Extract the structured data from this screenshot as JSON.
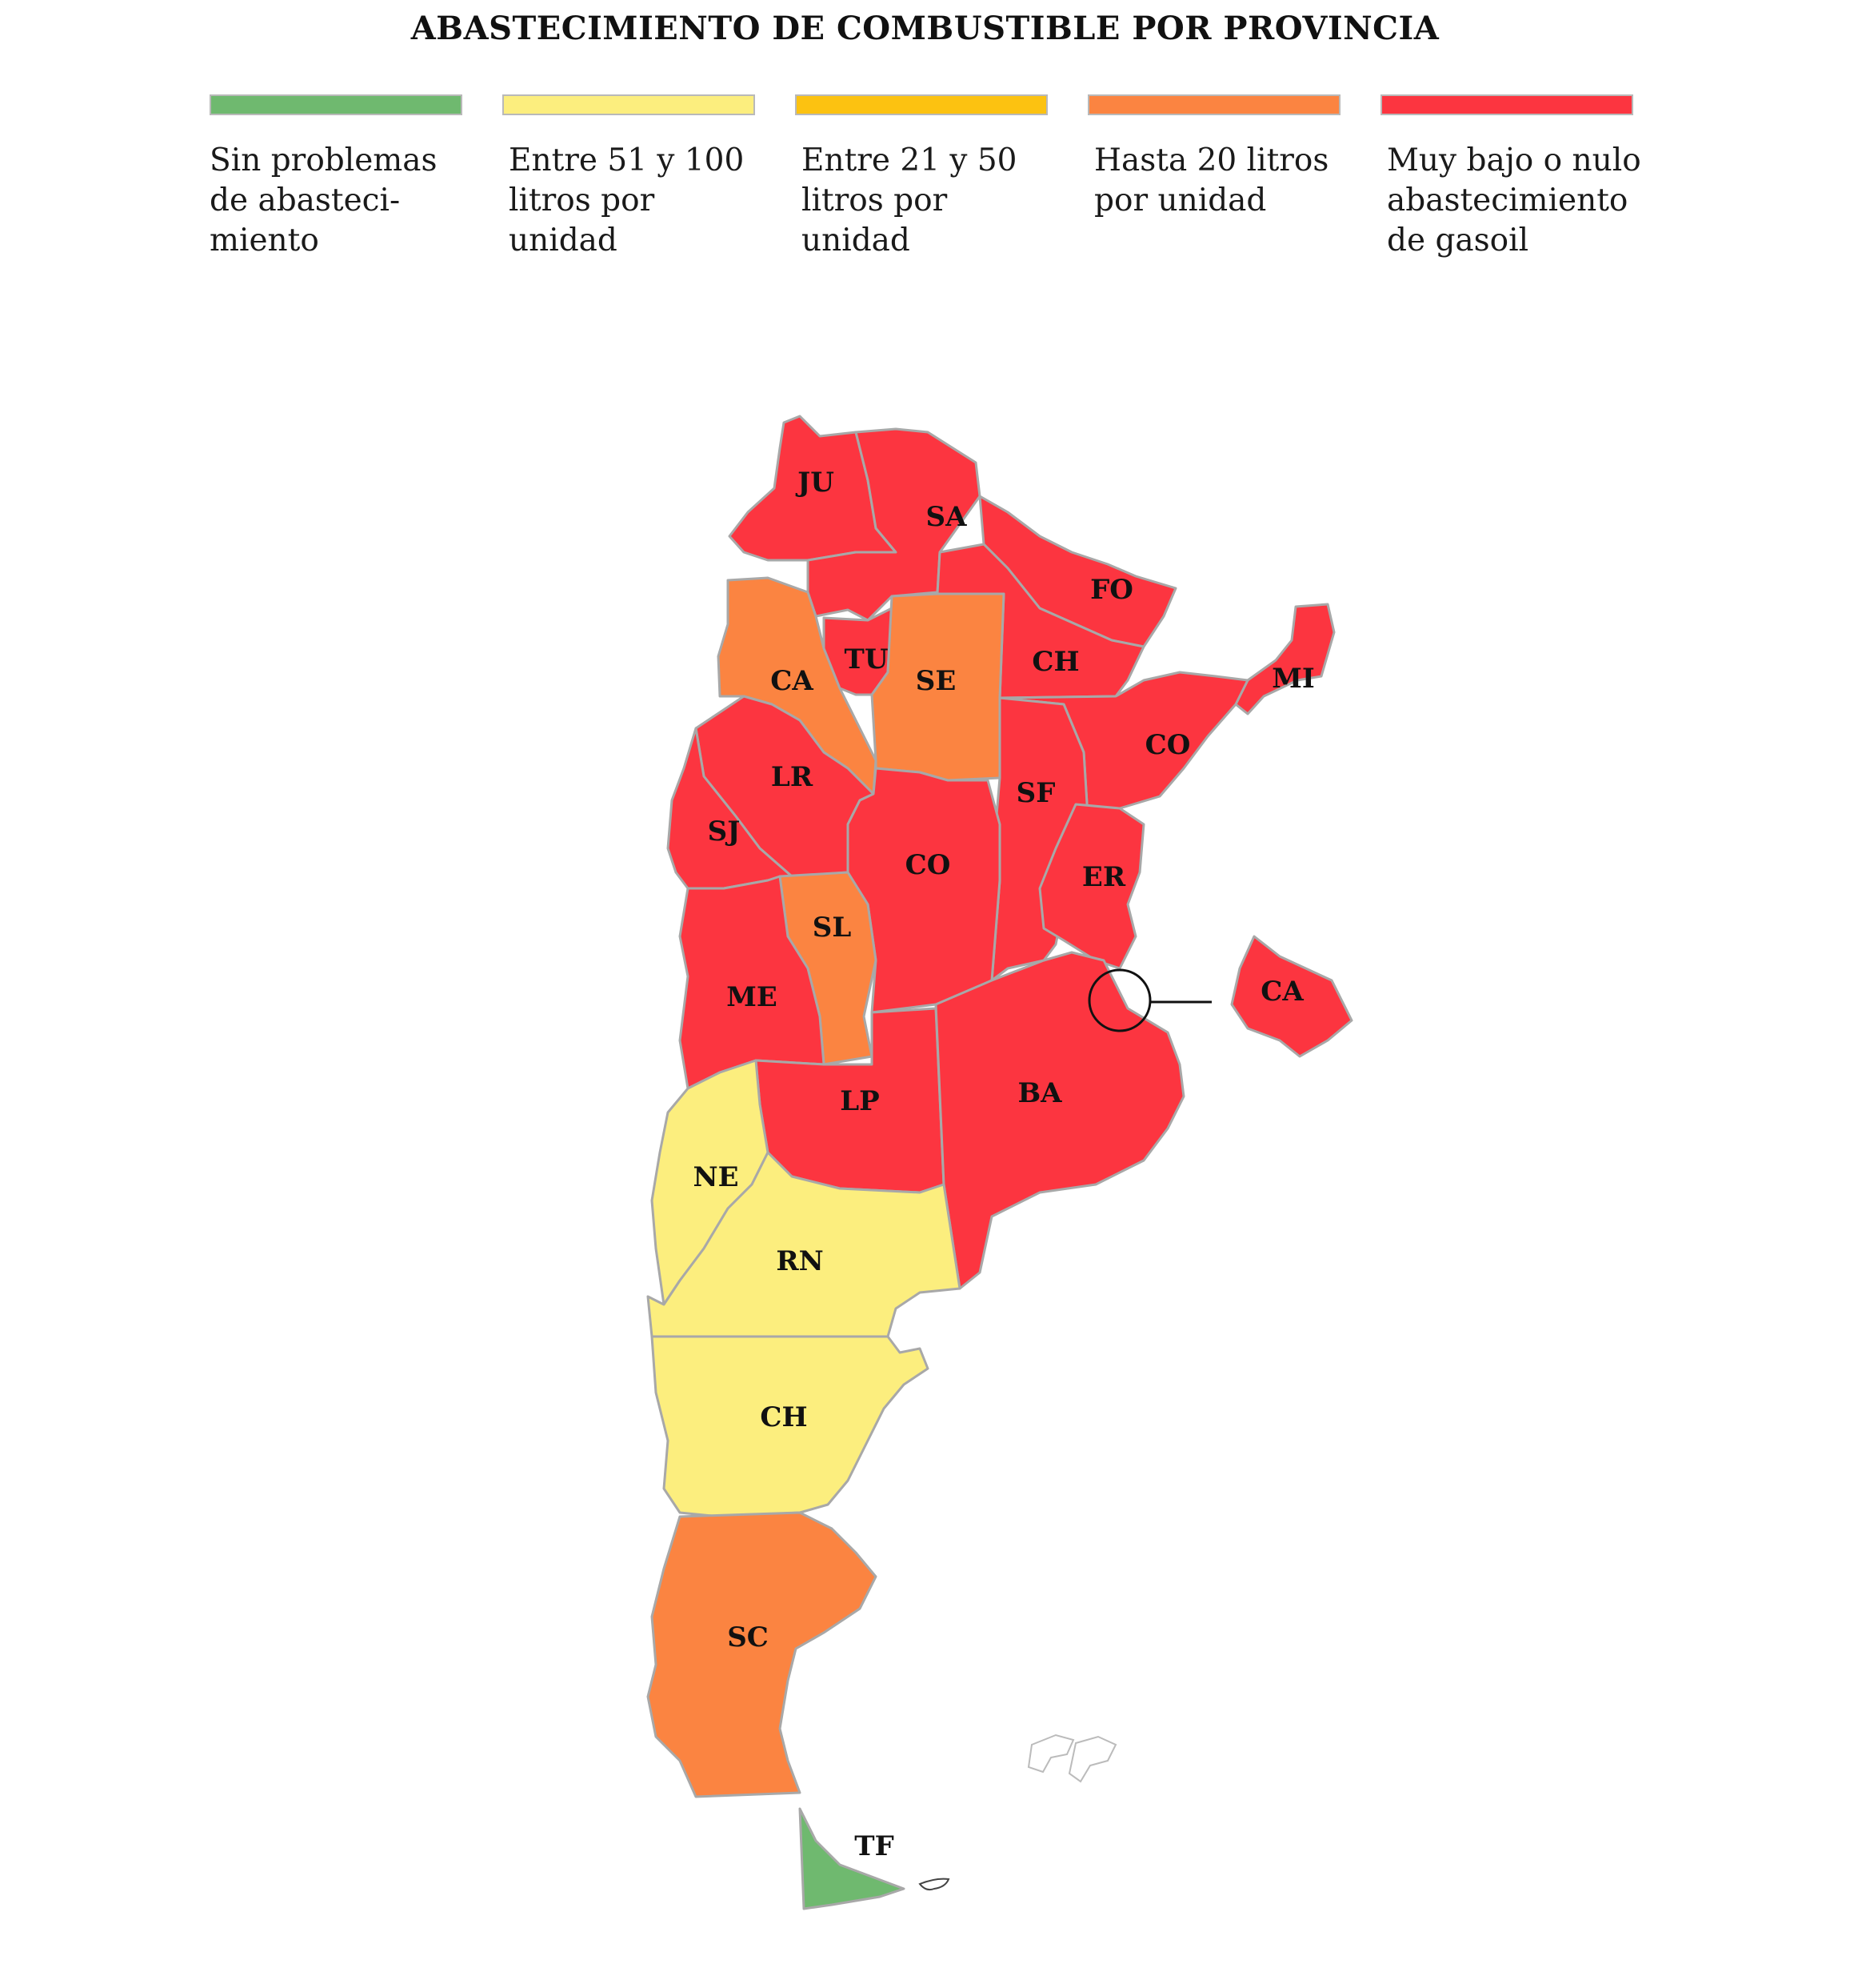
{
  "title": "ABASTECIMIENTO DE COMBUSTIBLE POR PROVINCIA",
  "colors": {
    "sin_problemas": "#6fb96f",
    "entre_51_100": "#fcee7e",
    "entre_21_50": "#fcc211",
    "hasta_20": "#fb8441",
    "muy_bajo": "#fc3540",
    "border": "#a8a8a8",
    "outline": "#222222"
  },
  "legend": [
    {
      "label": "Sin problemas de abasteci-miento",
      "lines": [
        "Sin problemas",
        "de abasteci-",
        "miento"
      ],
      "color": "#6fb96f"
    },
    {
      "label": "Entre 51 y 100 litros por unidad",
      "lines": [
        "Entre 51 y 100",
        "litros por",
        "unidad"
      ],
      "color": "#fcee7e"
    },
    {
      "label": "Entre 21 y 50 litros por unidad",
      "lines": [
        "Entre 21 y 50",
        "litros por",
        "unidad"
      ],
      "color": "#fcc211"
    },
    {
      "label": "Hasta 20 litros por unidad",
      "lines": [
        "Hasta 20 litros",
        "por unidad"
      ],
      "color": "#fb8441"
    },
    {
      "label": "Muy bajo o nulo abastecimiento de gasoil",
      "lines": [
        "Muy bajo o nulo",
        "abastecimiento",
        "de gasoil"
      ],
      "color": "#fc3540"
    }
  ],
  "provinces": [
    {
      "code": "JU",
      "category": "muy_bajo"
    },
    {
      "code": "SA",
      "category": "muy_bajo"
    },
    {
      "code": "FO",
      "category": "muy_bajo"
    },
    {
      "code": "CH",
      "category": "muy_bajo"
    },
    {
      "code": "MI",
      "category": "muy_bajo"
    },
    {
      "code": "CA",
      "category": "hasta_20"
    },
    {
      "code": "TU",
      "category": "muy_bajo"
    },
    {
      "code": "SE",
      "category": "hasta_20"
    },
    {
      "code": "CO",
      "category": "muy_bajo"
    },
    {
      "code": "LR",
      "category": "muy_bajo"
    },
    {
      "code": "SF",
      "category": "muy_bajo"
    },
    {
      "code": "SJ",
      "category": "muy_bajo"
    },
    {
      "code": "CO",
      "category": "muy_bajo"
    },
    {
      "code": "ER",
      "category": "muy_bajo"
    },
    {
      "code": "SL",
      "category": "hasta_20"
    },
    {
      "code": "ME",
      "category": "muy_bajo"
    },
    {
      "code": "CA",
      "category": "muy_bajo"
    },
    {
      "code": "LP",
      "category": "muy_bajo"
    },
    {
      "code": "BA",
      "category": "muy_bajo"
    },
    {
      "code": "NE",
      "category": "entre_51_100"
    },
    {
      "code": "RN",
      "category": "entre_51_100"
    },
    {
      "code": "CH",
      "category": "entre_51_100"
    },
    {
      "code": "SC",
      "category": "hasta_20"
    },
    {
      "code": "TF",
      "category": "sin_problemas"
    }
  ]
}
